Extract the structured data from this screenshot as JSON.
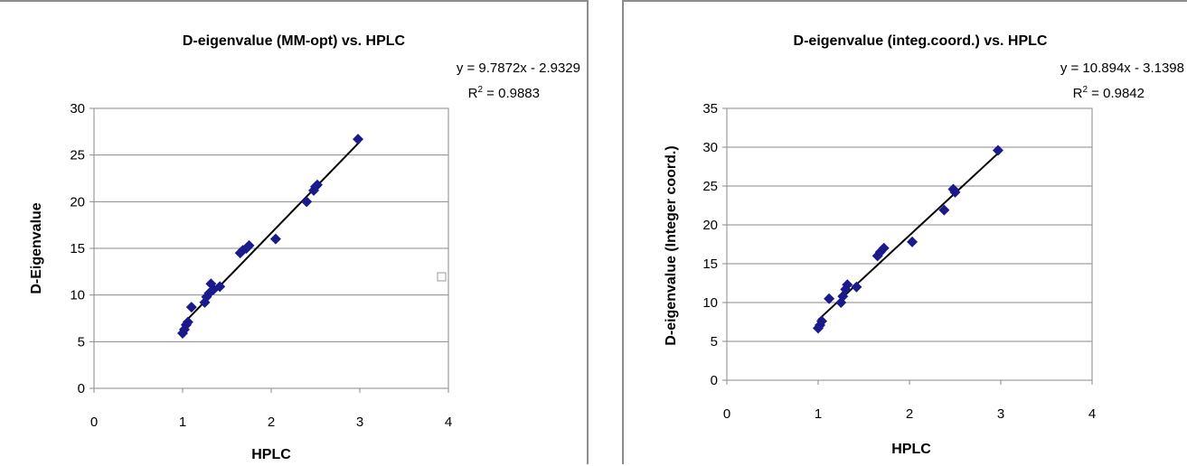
{
  "chart_data": [
    {
      "type": "scatter",
      "title": "D-eigenvalue (MM-opt) vs. HPLC",
      "xlabel": "HPLC",
      "ylabel": "D-Eigenvalue",
      "xlim": [
        0,
        4
      ],
      "ylim": [
        0,
        30
      ],
      "xticks": [
        "0",
        "1",
        "2",
        "3",
        "4"
      ],
      "yticks": [
        "0",
        "5",
        "10",
        "15",
        "20",
        "25",
        "30"
      ],
      "grid": "horizontal",
      "equation": "y = 9.7872x - 2.9329",
      "r2_label": "R",
      "r2_sup": "2",
      "r2_value": " = 0.9883",
      "trendline": {
        "slope": 9.7872,
        "intercept": -2.9329,
        "x_range": [
          1.0,
          3.0
        ]
      },
      "point_color": "#1a1a8c",
      "points": [
        {
          "x": 1.0,
          "y": 5.9
        },
        {
          "x": 1.02,
          "y": 6.3
        },
        {
          "x": 1.04,
          "y": 6.8
        },
        {
          "x": 1.06,
          "y": 7.1
        },
        {
          "x": 1.1,
          "y": 8.7
        },
        {
          "x": 1.25,
          "y": 9.2
        },
        {
          "x": 1.27,
          "y": 9.8
        },
        {
          "x": 1.3,
          "y": 10.2
        },
        {
          "x": 1.32,
          "y": 11.2
        },
        {
          "x": 1.35,
          "y": 10.6
        },
        {
          "x": 1.42,
          "y": 10.9
        },
        {
          "x": 1.65,
          "y": 14.5
        },
        {
          "x": 1.68,
          "y": 14.8
        },
        {
          "x": 1.72,
          "y": 15.0
        },
        {
          "x": 1.75,
          "y": 15.3
        },
        {
          "x": 2.05,
          "y": 16.0
        },
        {
          "x": 2.4,
          "y": 20.0
        },
        {
          "x": 2.48,
          "y": 21.2
        },
        {
          "x": 2.5,
          "y": 21.6
        },
        {
          "x": 2.52,
          "y": 21.8
        },
        {
          "x": 2.98,
          "y": 26.7
        }
      ]
    },
    {
      "type": "scatter",
      "title": "D-eigenvalue (integ.coord.) vs. HPLC",
      "xlabel": "HPLC",
      "ylabel": "D-eigenvalue (Integer coord.)",
      "xlim": [
        0,
        4
      ],
      "ylim": [
        0,
        35
      ],
      "xticks": [
        "0",
        "1",
        "2",
        "3",
        "4"
      ],
      "yticks": [
        "0",
        "5",
        "10",
        "15",
        "20",
        "25",
        "30",
        "35"
      ],
      "grid": "horizontal",
      "equation": "y = 10.894x - 3.1398",
      "r2_label": "R",
      "r2_sup": "2",
      "r2_value": " = 0.9842",
      "trendline": {
        "slope": 10.894,
        "intercept": -3.1398,
        "x_range": [
          1.0,
          3.0
        ]
      },
      "point_color": "#1a1a8c",
      "points": [
        {
          "x": 1.0,
          "y": 6.7
        },
        {
          "x": 1.02,
          "y": 7.1
        },
        {
          "x": 1.04,
          "y": 7.6
        },
        {
          "x": 1.12,
          "y": 10.5
        },
        {
          "x": 1.25,
          "y": 10.0
        },
        {
          "x": 1.27,
          "y": 10.8
        },
        {
          "x": 1.3,
          "y": 11.7
        },
        {
          "x": 1.32,
          "y": 12.3
        },
        {
          "x": 1.42,
          "y": 12.0
        },
        {
          "x": 1.65,
          "y": 16.0
        },
        {
          "x": 1.68,
          "y": 16.5
        },
        {
          "x": 1.72,
          "y": 17.0
        },
        {
          "x": 2.03,
          "y": 17.8
        },
        {
          "x": 2.38,
          "y": 21.9
        },
        {
          "x": 2.48,
          "y": 24.6
        },
        {
          "x": 2.5,
          "y": 24.2
        },
        {
          "x": 2.97,
          "y": 29.6
        }
      ]
    }
  ]
}
